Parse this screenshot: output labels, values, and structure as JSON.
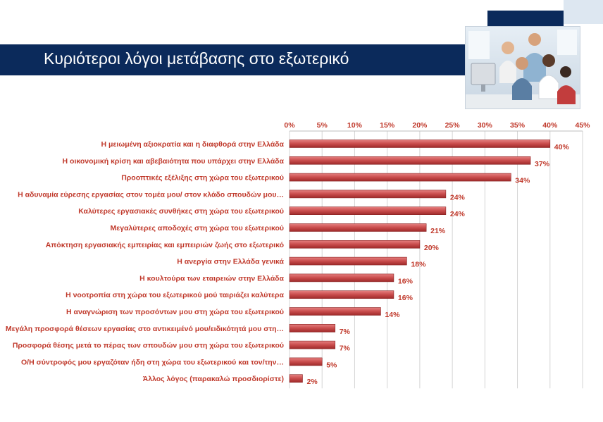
{
  "header": {
    "title": "Κυριότεροι λόγοι μετάβασης στο εξωτερικό"
  },
  "colors": {
    "title_bar": "#0b2a5b",
    "bar": "#c94c4c",
    "bar_dark": "#9e2a2a",
    "label": "#c0392b"
  },
  "photo": {
    "icon": "office-team-photo"
  },
  "chart_data": {
    "type": "bar",
    "orientation": "horizontal",
    "categories": [
      "Η μειωμένη αξιοκρατία και η διαφθορά στην Ελλάδα",
      "Η οικονομική κρίση και αβεβαιότητα που υπάρχει στην Ελλάδα",
      "Προοπτικές εξέλιξης στη χώρα του εξωτερικού",
      "Η αδυναμία εύρεσης εργασίας στον τομέα μου/ στον κλάδο σπουδών μου…",
      "Καλύτερες εργασιακές συνθήκες στη χώρα του εξωτερικού",
      "Μεγαλύτερες αποδοχές στη χώρα του εξωτερικού",
      "Απόκτηση εργασιακής εμπειρίας και εμπειριών ζωής στο εξωτερικό",
      "Η ανεργία στην Ελλάδα γενικά",
      "Η κουλτούρα των εταιρειών στην Ελλάδα",
      "Η νοοτροπία στη χώρα του εξωτερικού μού ταιριάζει καλύτερα",
      "Η αναγνώριση των προσόντων μου στη χώρα του εξωτερικού",
      "Μεγάλη προσφορά θέσεων εργασίας στο αντικειμένό μου/ειδικότητά μου στη…",
      "Προσφορά θέσης μετά το πέρας των σπουδών μου στη χώρα του εξωτερικού",
      "Ο/Η σύντροφός μου εργαζόταν ήδη στη χώρα του εξωτερικού και τον/την…",
      "Άλλος λόγος (παρακαλώ προσδιορίστε)"
    ],
    "values": [
      40,
      37,
      34,
      24,
      24,
      21,
      20,
      18,
      16,
      16,
      14,
      7,
      7,
      5,
      2
    ],
    "data_labels": [
      "40%",
      "37%",
      "34%",
      "24%",
      "24%",
      "21%",
      "20%",
      "18%",
      "16%",
      "16%",
      "14%",
      "7%",
      "7%",
      "5%",
      "2%"
    ],
    "xlim": [
      0,
      45
    ],
    "x_ticks": [
      "0%",
      "5%",
      "10%",
      "15%",
      "20%",
      "25%",
      "30%",
      "35%",
      "40%",
      "45%"
    ],
    "x_axis_position": "top",
    "grid": true
  }
}
